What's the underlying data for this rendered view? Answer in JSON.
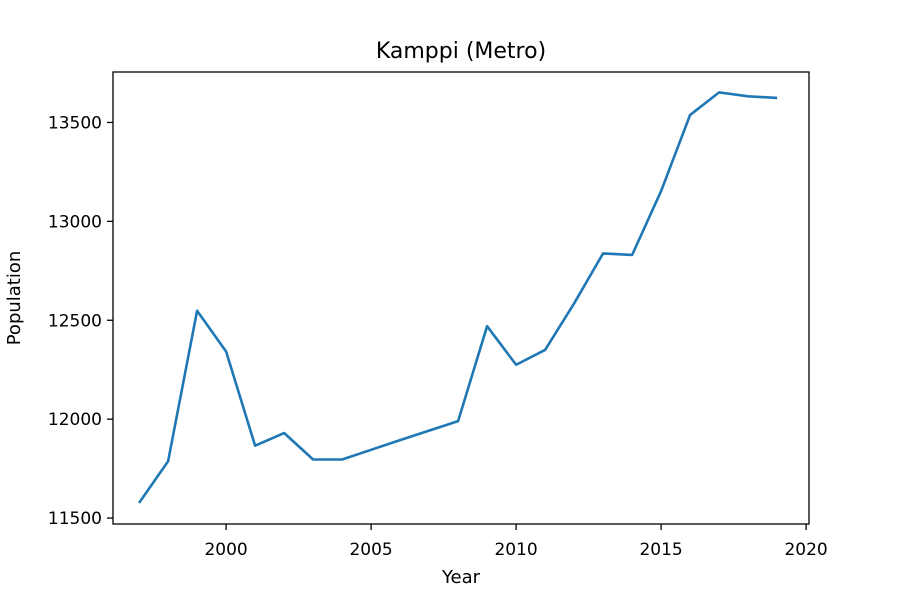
{
  "chart_data": {
    "type": "line",
    "title": "Kamppi (Metro)",
    "xlabel": "Year",
    "ylabel": "Population",
    "xlim": [
      1996.1,
      2020.1
    ],
    "ylim": [
      11470,
      13755
    ],
    "xticks": [
      2000,
      2005,
      2010,
      2015,
      2020
    ],
    "yticks": [
      11500,
      12000,
      12500,
      13000,
      13500
    ],
    "grid": false,
    "series": [
      {
        "color": "#1f77b4",
        "x": [
          1997,
          1998,
          1999,
          2000,
          2001,
          2002,
          2003,
          2004,
          2005,
          2006,
          2007,
          2008,
          2009,
          2010,
          2011,
          2012,
          2013,
          2014,
          2015,
          2016,
          2017,
          2018,
          2019
        ],
        "y": [
          11577,
          11787,
          12548,
          12342,
          11866,
          11930,
          11796,
          11796,
          11845,
          11894,
          11942,
          11990,
          12470,
          12275,
          12350,
          12585,
          12838,
          12830,
          13153,
          13538,
          13652,
          13632,
          13624
        ]
      }
    ]
  }
}
